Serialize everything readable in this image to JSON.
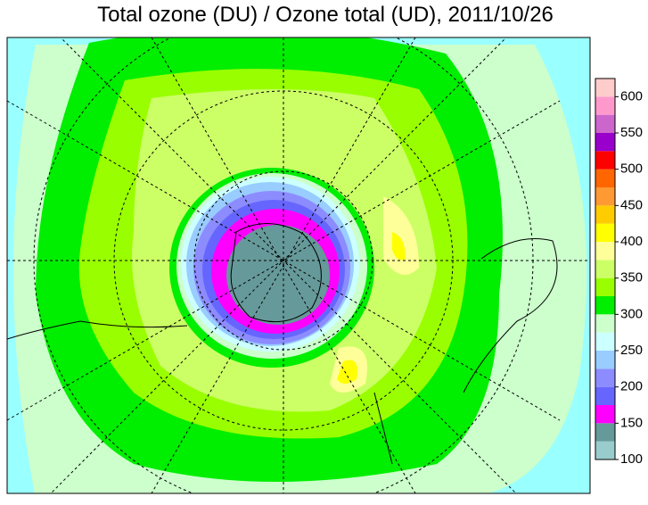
{
  "title": "Total ozone (DU) / Ozone total (UD), 2011/10/26",
  "colorbar": {
    "lim": [
      100,
      625
    ],
    "ticks": [
      100,
      150,
      200,
      250,
      300,
      350,
      400,
      450,
      500,
      550,
      600
    ],
    "bounds": [
      100,
      125,
      150,
      175,
      200,
      225,
      250,
      275,
      300,
      325,
      350,
      375,
      400,
      425,
      450,
      475,
      500,
      525,
      550,
      575,
      600,
      625
    ],
    "colors": [
      "#99cccc",
      "#669999",
      "#ff00ff",
      "#6666ff",
      "#8c8cff",
      "#99ccff",
      "#ccffff",
      "#ccffcc",
      "#00ee00",
      "#99ff00",
      "#ccff66",
      "#ffff99",
      "#ffff00",
      "#ffcc00",
      "#ff9933",
      "#ff6600",
      "#ff0000",
      "#9900cc",
      "#cc66cc",
      "#ff99cc",
      "#ffcccc"
    ]
  }
}
